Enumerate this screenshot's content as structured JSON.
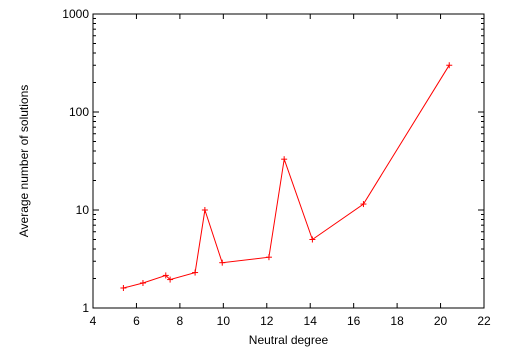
{
  "chart_data": {
    "type": "line",
    "title": "",
    "xlabel": "Neutral degree",
    "ylabel": "Average number of solutions",
    "xlim": [
      4,
      22
    ],
    "ylim": [
      1,
      1000
    ],
    "yscale": "log",
    "xticks": [
      4,
      6,
      8,
      10,
      12,
      14,
      16,
      18,
      20,
      22
    ],
    "yticks": [
      1,
      10,
      100,
      1000
    ],
    "ytick_labels": [
      "1",
      "10",
      "100",
      "1000"
    ],
    "grid": false,
    "series": [
      {
        "color": "#ff0000",
        "marker": "+",
        "x": [
          5.4,
          6.3,
          7.35,
          7.55,
          8.7,
          9.15,
          9.95,
          12.1,
          12.8,
          14.1,
          16.45,
          20.4
        ],
        "y": [
          1.6,
          1.8,
          2.15,
          1.95,
          2.3,
          10,
          2.9,
          3.3,
          33,
          5,
          11.5,
          300
        ]
      }
    ]
  }
}
